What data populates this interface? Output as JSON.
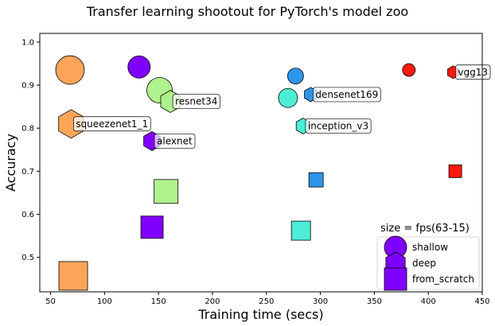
{
  "chart_data": {
    "type": "scatter",
    "title": "Transfer learning shootout for PyTorch's model zoo",
    "xlabel": "Training time (secs)",
    "ylabel": "Accuracy",
    "xlim": [
      40,
      450
    ],
    "ylim": [
      0.42,
      1.02
    ],
    "xticks": [
      50,
      100,
      150,
      200,
      250,
      300,
      350,
      400,
      450
    ],
    "yticks": [
      0.5,
      0.6,
      0.7,
      0.8,
      0.9,
      1.0
    ],
    "ytick_labels": [
      "0.5",
      "0.6",
      "0.7",
      "0.8",
      "0.9",
      "1.0"
    ],
    "grid": false,
    "size_encoding": "fps",
    "series": [
      {
        "name": "shallow",
        "marker": "circle",
        "points": [
          {
            "model": "squeezenet1_1",
            "x": 68,
            "y": 0.935,
            "color": "#ffa55a",
            "size": 18
          },
          {
            "model": "alexnet",
            "x": 132,
            "y": 0.942,
            "color": "#8000ff",
            "size": 14
          },
          {
            "model": "resnet34",
            "x": 151,
            "y": 0.888,
            "color": "#b0f28d",
            "size": 16
          },
          {
            "model": "inception_v3",
            "x": 270,
            "y": 0.87,
            "color": "#4dedd6",
            "size": 12
          },
          {
            "model": "densenet169",
            "x": 277,
            "y": 0.921,
            "color": "#2d95ec",
            "size": 10
          },
          {
            "model": "vgg13",
            "x": 382,
            "y": 0.935,
            "color": "#ff1a0d",
            "size": 8
          }
        ]
      },
      {
        "name": "deep",
        "marker": "hexagon",
        "points": [
          {
            "model": "squeezenet1_1",
            "x": 69,
            "y": 0.81,
            "color": "#ffa55a",
            "size": 18,
            "label": "squeezenet1_1"
          },
          {
            "model": "alexnet",
            "x": 144,
            "y": 0.77,
            "color": "#8000ff",
            "size": 12,
            "label": "alexnet"
          },
          {
            "model": "resnet34",
            "x": 161,
            "y": 0.862,
            "color": "#b0f28d",
            "size": 14,
            "label": "resnet34"
          },
          {
            "model": "inception_v3",
            "x": 284,
            "y": 0.805,
            "color": "#4dedd6",
            "size": 10,
            "label": "inception_v3"
          },
          {
            "model": "densenet169",
            "x": 291,
            "y": 0.878,
            "color": "#2d95ec",
            "size": 9,
            "label": "densenet169"
          },
          {
            "model": "vgg13",
            "x": 423,
            "y": 0.93,
            "color": "#ff1a0d",
            "size": 8,
            "label": "vgg13"
          }
        ]
      },
      {
        "name": "from_scratch",
        "marker": "square",
        "points": [
          {
            "model": "squeezenet1_1",
            "x": 71,
            "y": 0.457,
            "color": "#ffa55a",
            "size": 18
          },
          {
            "model": "alexnet",
            "x": 144,
            "y": 0.57,
            "color": "#8000ff",
            "size": 14
          },
          {
            "model": "resnet34",
            "x": 157,
            "y": 0.653,
            "color": "#b0f28d",
            "size": 15
          },
          {
            "model": "inception_v3",
            "x": 282,
            "y": 0.562,
            "color": "#4dedd6",
            "size": 12
          },
          {
            "model": "densenet169",
            "x": 296,
            "y": 0.68,
            "color": "#2d95ec",
            "size": 9
          },
          {
            "model": "vgg13",
            "x": 425,
            "y": 0.7,
            "color": "#ff1a0d",
            "size": 8
          }
        ]
      }
    ],
    "legend": {
      "title": "size = fps(63-15)",
      "placement": "lower-right",
      "entries": [
        "shallow",
        "deep",
        "from_scratch"
      ],
      "swatch_color": "#8000ff"
    }
  }
}
